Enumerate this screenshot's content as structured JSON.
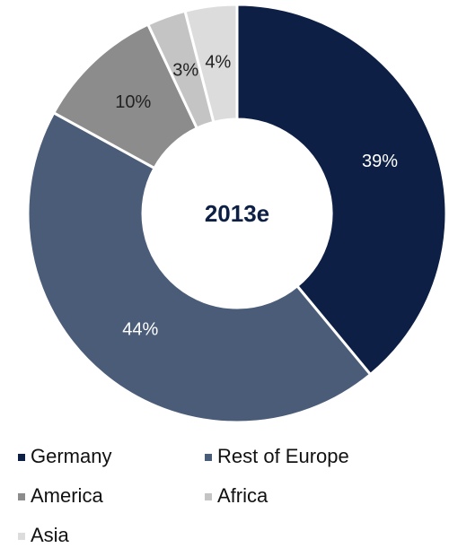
{
  "chart_data": {
    "type": "donut",
    "center_label": "2013e",
    "categories": [
      "Germany",
      "Rest of Europe",
      "America",
      "Africa",
      "Asia"
    ],
    "values": [
      39,
      44,
      10,
      3,
      4
    ],
    "value_labels": [
      "39%",
      "44%",
      "10%",
      "3%",
      "4%"
    ],
    "colors": [
      "#0d1f45",
      "#4b5c79",
      "#8c8c8c",
      "#c4c4c4",
      "#dcdcdc"
    ],
    "legend": "bottom"
  }
}
